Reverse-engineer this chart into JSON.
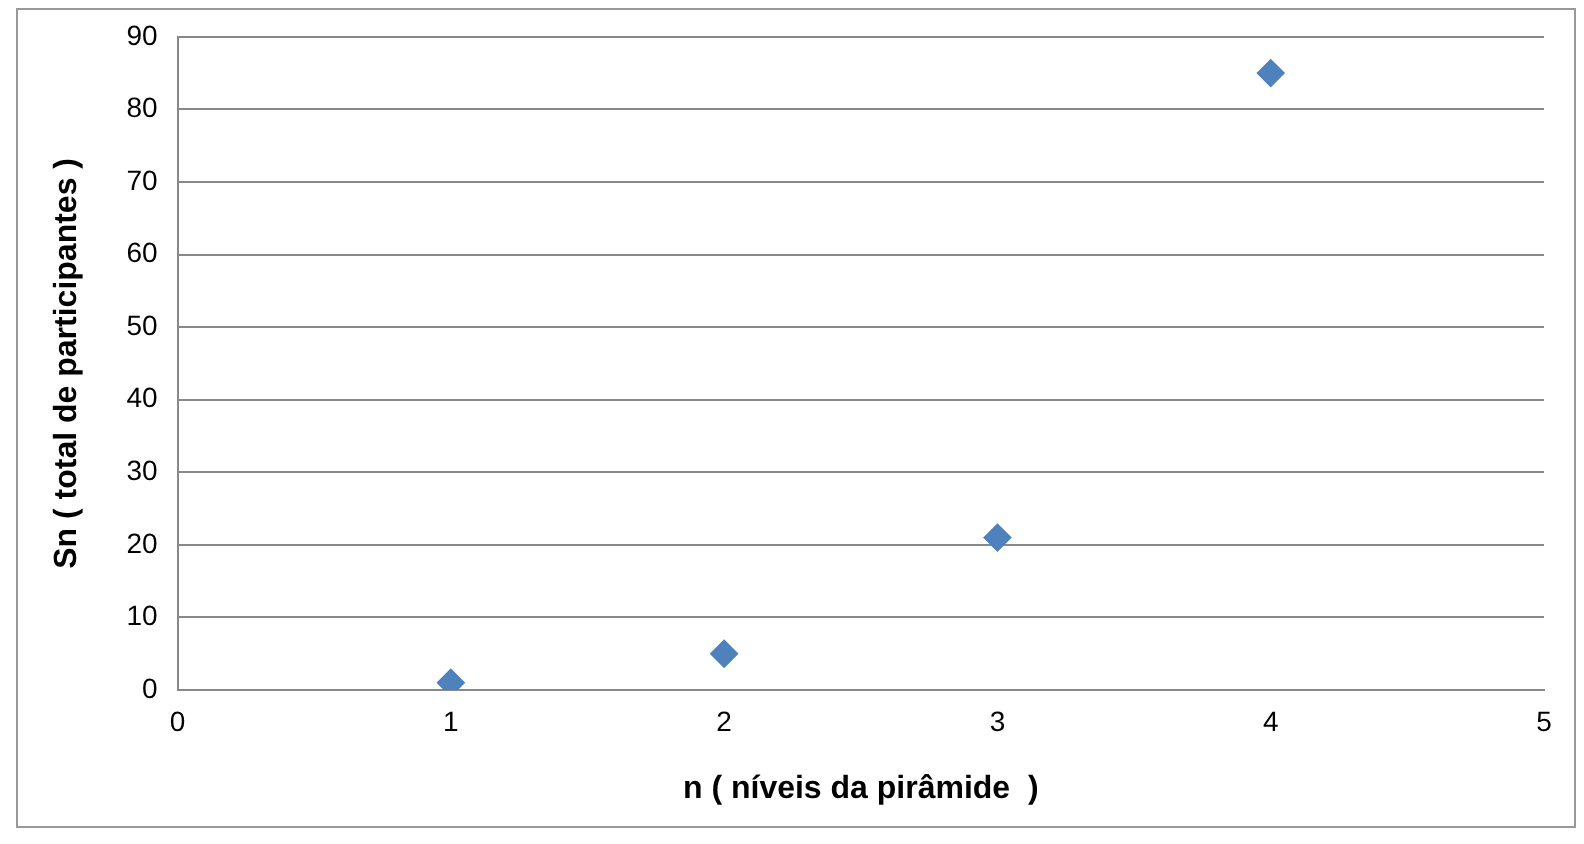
{
  "chart_data": {
    "type": "scatter",
    "xlabel": "n ( níveis da pirâmide  )",
    "ylabel": "Sn ( total de participantes )",
    "x": [
      1,
      2,
      3,
      4
    ],
    "series": [
      {
        "color": "#4f81bd",
        "values": [
          1,
          5,
          21,
          85
        ]
      }
    ],
    "xlim": [
      0,
      5
    ],
    "xticks": [
      0,
      1,
      2,
      3,
      4,
      5
    ],
    "ylim": [
      0,
      90
    ],
    "yticks": [
      0,
      10,
      20,
      30,
      40,
      50,
      60,
      70,
      80,
      90
    ],
    "grid": "y",
    "legend": false,
    "marker": "diamond"
  }
}
